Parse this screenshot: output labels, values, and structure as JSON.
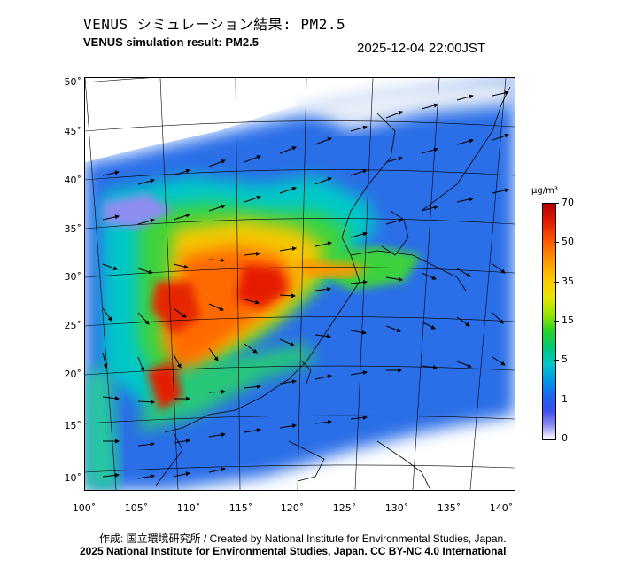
{
  "title_jp": "VENUS シミュレーション結果: PM2.5",
  "title_en": "VENUS simulation result: PM2.5",
  "timestamp": "2025-12-04 22:00JST",
  "axes": {
    "lat_labels": [
      "50˚",
      "45˚",
      "40˚",
      "35˚",
      "30˚",
      "25˚",
      "20˚",
      "15˚",
      "10˚"
    ],
    "lon_labels": [
      "100˚",
      "105˚",
      "110˚",
      "115˚",
      "120˚",
      "125˚",
      "130˚",
      "135˚",
      "140˚"
    ]
  },
  "colorbar": {
    "unit": "μg/m³",
    "labels": [
      "70",
      "50",
      "35",
      "15",
      "5",
      "1",
      "0"
    ]
  },
  "footer": {
    "credit": "作成: 国立環境研究所 / Created by National Institute for Environmental Studies, Japan.",
    "copyright": "2025 National Institute for Environmental Studies, Japan. CC BY-NC 4.0 International"
  }
}
